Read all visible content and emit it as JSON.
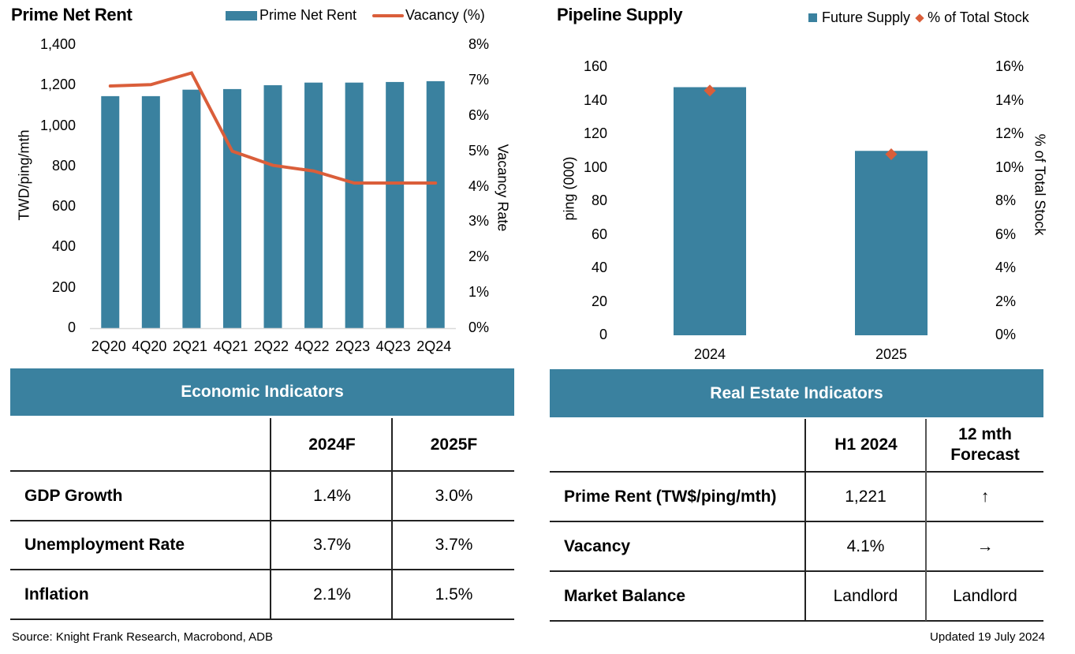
{
  "colors": {
    "bar": "#3A819F",
    "line": "#DA5E3A",
    "axis": "#D9D9D9",
    "band": "#3A819F"
  },
  "chart_data": [
    {
      "type": "bar",
      "title": "Prime Net Rent",
      "categories": [
        "2Q20",
        "4Q20",
        "2Q21",
        "4Q21",
        "2Q22",
        "4Q22",
        "2Q23",
        "4Q23",
        "2Q24"
      ],
      "series": [
        {
          "name": "Prime Net Rent",
          "type": "bar",
          "axis": "left",
          "values": [
            1147,
            1147,
            1179,
            1182,
            1201,
            1214,
            1214,
            1217,
            1221
          ]
        },
        {
          "name": "Vacancy (%)",
          "type": "line",
          "axis": "right",
          "values": [
            6.84,
            6.88,
            7.21,
            5.0,
            4.6,
            4.44,
            4.1,
            4.1,
            4.1
          ]
        }
      ],
      "ylabel": "TWD/ping/mth",
      "ylabel_right": "Vacancy Rate",
      "ylim": [
        0,
        1400
      ],
      "ylim_right": [
        0,
        8
      ],
      "yticks": [
        "0",
        "200",
        "400",
        "600",
        "800",
        "1,000",
        "1,200",
        "1,400"
      ],
      "yticks_right": [
        "0%",
        "1%",
        "2%",
        "3%",
        "4%",
        "5%",
        "6%",
        "7%",
        "8%"
      ],
      "legend": [
        "Prime Net Rent",
        "Vacancy (%)"
      ],
      "legend_position": "top-right",
      "grid": false
    },
    {
      "type": "bar",
      "title": "Pipeline Supply",
      "categories": [
        "2024",
        "2025"
      ],
      "series": [
        {
          "name": "Future Supply",
          "type": "bar",
          "axis": "left",
          "values": [
            148,
            110
          ]
        },
        {
          "name": "% of Total Stock",
          "type": "scatter",
          "marker": "diamond",
          "axis": "right",
          "values": [
            14.6,
            10.8
          ]
        }
      ],
      "ylabel": "ping (000)",
      "ylabel_right": "% of Total Stock",
      "ylim": [
        0,
        160
      ],
      "ylim_right": [
        0,
        16
      ],
      "yticks": [
        "0",
        "20",
        "40",
        "60",
        "80",
        "100",
        "120",
        "140",
        "160"
      ],
      "yticks_right": [
        "0%",
        "2%",
        "4%",
        "6%",
        "8%",
        "10%",
        "12%",
        "14%",
        "16%"
      ],
      "legend": [
        "Future Supply",
        "% of Total Stock"
      ],
      "legend_position": "top-right",
      "grid": false
    }
  ],
  "economic": {
    "title": "Economic Indicators",
    "columns": [
      "",
      "2024F",
      "2025F"
    ],
    "rows": [
      {
        "label": "GDP Growth",
        "v1": "1.4%",
        "v2": "3.0%"
      },
      {
        "label": "Unemployment Rate",
        "v1": "3.7%",
        "v2": "3.7%"
      },
      {
        "label": "Inflation",
        "v1": "2.1%",
        "v2": "1.5%"
      }
    ]
  },
  "realestate": {
    "title": "Real Estate Indicators",
    "columns": [
      "",
      "H1 2024",
      "12 mth Forecast"
    ],
    "col2_line1": "12 mth",
    "col2_line2": "Forecast",
    "rows": [
      {
        "label": "Prime Rent (TW$/ping/mth)",
        "v1": "1,221",
        "v2": "↑",
        "v2_icon": "arrow-up-icon"
      },
      {
        "label": "Vacancy",
        "v1": "4.1%",
        "v2": "→",
        "v2_icon": "arrow-right-icon"
      },
      {
        "label": "Market Balance",
        "v1": "Landlord",
        "v2": "Landlord"
      }
    ]
  },
  "footer": {
    "source": "Source: Knight Frank Research, Macrobond, ADB",
    "updated": "Updated 19 July 2024"
  }
}
